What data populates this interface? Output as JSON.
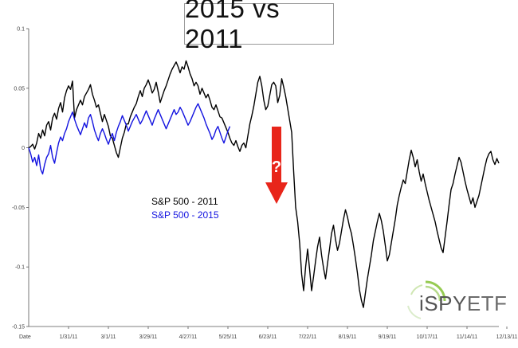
{
  "chart_data": {
    "type": "line",
    "title": "2015 vs 2011",
    "xlabel": "Date",
    "ylabel": "",
    "ylim": [
      -0.15,
      0.1
    ],
    "yticks": [
      0.1,
      0.05,
      0,
      -0.05,
      -0.1,
      -0.15
    ],
    "ytick_labels": [
      "0.1",
      "0.05",
      "0",
      "-0.05",
      "-0.1",
      "-0.15"
    ],
    "x_first_label": "Date",
    "xtick_labels": [
      "1/31/11",
      "3/1/11",
      "3/29/11",
      "4/27/11",
      "5/25/11",
      "6/23/11",
      "7/22/11",
      "8/19/11",
      "9/19/11",
      "10/17/11",
      "11/14/11",
      "12/13/11"
    ],
    "xtick_index": [
      20,
      40,
      60,
      80,
      100,
      120,
      140,
      160,
      180,
      200,
      220,
      240
    ],
    "series": [
      {
        "name": "S&P 500 - 2011",
        "color": "#000000",
        "values": [
          0.0,
          0.001,
          0.003,
          -0.001,
          0.004,
          0.012,
          0.008,
          0.015,
          0.01,
          0.019,
          0.022,
          0.015,
          0.025,
          0.029,
          0.024,
          0.033,
          0.038,
          0.03,
          0.042,
          0.048,
          0.052,
          0.049,
          0.056,
          0.025,
          0.032,
          0.036,
          0.04,
          0.036,
          0.043,
          0.046,
          0.049,
          0.053,
          0.045,
          0.04,
          0.034,
          0.036,
          0.029,
          0.022,
          0.028,
          0.023,
          0.018,
          0.01,
          0.008,
          0.002,
          -0.004,
          -0.008,
          0.0,
          0.008,
          0.013,
          0.02,
          0.02,
          0.026,
          0.03,
          0.034,
          0.037,
          0.043,
          0.048,
          0.043,
          0.05,
          0.053,
          0.057,
          0.052,
          0.046,
          0.049,
          0.055,
          0.047,
          0.038,
          0.043,
          0.048,
          0.052,
          0.057,
          0.062,
          0.066,
          0.069,
          0.072,
          0.068,
          0.063,
          0.068,
          0.066,
          0.073,
          0.068,
          0.062,
          0.058,
          0.052,
          0.055,
          0.052,
          0.045,
          0.05,
          0.046,
          0.042,
          0.045,
          0.04,
          0.034,
          0.032,
          0.036,
          0.031,
          0.026,
          0.025,
          0.021,
          0.017,
          0.013,
          0.008,
          0.004,
          0.002,
          0.006,
          0.001,
          -0.003,
          0.002,
          0.004,
          0.0,
          0.01,
          0.02,
          0.027,
          0.035,
          0.045,
          0.055,
          0.06,
          0.052,
          0.04,
          0.032,
          0.035,
          0.044,
          0.053,
          0.055,
          0.052,
          0.038,
          0.044,
          0.058,
          0.051,
          0.043,
          0.033,
          0.023,
          0.013,
          -0.02,
          -0.05,
          -0.062,
          -0.08,
          -0.106,
          -0.12,
          -0.1,
          -0.085,
          -0.102,
          -0.12,
          -0.108,
          -0.095,
          -0.083,
          -0.075,
          -0.09,
          -0.101,
          -0.11,
          -0.097,
          -0.085,
          -0.072,
          -0.065,
          -0.077,
          -0.086,
          -0.08,
          -0.07,
          -0.06,
          -0.052,
          -0.058,
          -0.066,
          -0.072,
          -0.082,
          -0.093,
          -0.105,
          -0.119,
          -0.128,
          -0.134,
          -0.122,
          -0.11,
          -0.1,
          -0.09,
          -0.078,
          -0.07,
          -0.062,
          -0.055,
          -0.061,
          -0.07,
          -0.082,
          -0.095,
          -0.09,
          -0.08,
          -0.07,
          -0.06,
          -0.048,
          -0.04,
          -0.033,
          -0.027,
          -0.03,
          -0.02,
          -0.01,
          -0.002,
          -0.008,
          -0.016,
          -0.01,
          -0.02,
          -0.028,
          -0.022,
          -0.03,
          -0.037,
          -0.044,
          -0.05,
          -0.056,
          -0.062,
          -0.07,
          -0.077,
          -0.084,
          -0.088,
          -0.075,
          -0.062,
          -0.048,
          -0.035,
          -0.03,
          -0.022,
          -0.015,
          -0.008,
          -0.012,
          -0.02,
          -0.028,
          -0.035,
          -0.041,
          -0.047,
          -0.042,
          -0.05,
          -0.045,
          -0.04,
          -0.032,
          -0.024,
          -0.016,
          -0.009,
          -0.005,
          -0.003,
          -0.01,
          -0.014,
          -0.009,
          -0.013
        ]
      },
      {
        "name": "S&P 500 - 2015",
        "color": "#1414e0",
        "values": [
          0.0,
          -0.005,
          -0.012,
          -0.008,
          -0.015,
          -0.006,
          -0.018,
          -0.022,
          -0.014,
          -0.008,
          -0.005,
          0.002,
          -0.008,
          -0.013,
          -0.004,
          0.004,
          0.009,
          0.006,
          0.012,
          0.016,
          0.022,
          0.026,
          0.03,
          0.024,
          0.019,
          0.015,
          0.011,
          0.016,
          0.021,
          0.017,
          0.025,
          0.028,
          0.022,
          0.015,
          0.01,
          0.006,
          0.012,
          0.016,
          0.012,
          0.007,
          0.003,
          0.008,
          0.012,
          0.006,
          0.013,
          0.018,
          0.022,
          0.027,
          0.023,
          0.019,
          0.014,
          0.018,
          0.022,
          0.025,
          0.028,
          0.024,
          0.02,
          0.023,
          0.027,
          0.031,
          0.027,
          0.023,
          0.019,
          0.024,
          0.028,
          0.032,
          0.028,
          0.024,
          0.02,
          0.016,
          0.02,
          0.024,
          0.028,
          0.032,
          0.028,
          0.03,
          0.034,
          0.031,
          0.027,
          0.023,
          0.019,
          0.022,
          0.026,
          0.03,
          0.034,
          0.037,
          0.033,
          0.029,
          0.025,
          0.02,
          0.016,
          0.012,
          0.007,
          0.01,
          0.015,
          0.018,
          0.013,
          0.008,
          0.004,
          0.009,
          0.014,
          0.018
        ]
      }
    ],
    "legend_placement": "center-left",
    "grid": false,
    "annotation": {
      "symbol": "?",
      "color": "#e8251a"
    }
  },
  "logo": {
    "text_main": "iSPY",
    "text_accent": "ETF",
    "ring_color": "#8bc53f"
  }
}
